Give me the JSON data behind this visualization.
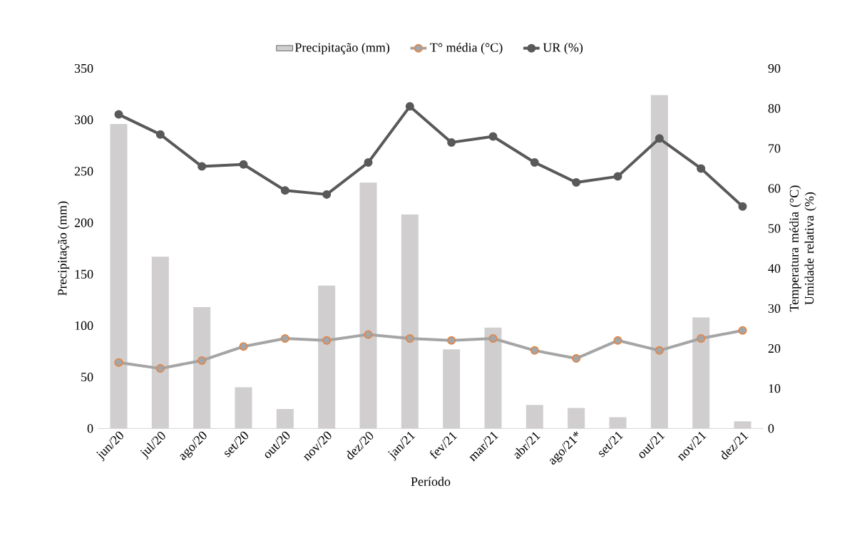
{
  "chart_data": {
    "type": "bar",
    "xlabel": "Período",
    "ylabel": "Precipitação (mm)",
    "y2label": "Temperatura média (°C) Umidade relativa (%)",
    "categories": [
      "jun/20",
      "jul/20",
      "ago/20",
      "set/20",
      "out/20",
      "nov/20",
      "dez/20",
      "jan/21",
      "fev/21",
      "mar/21",
      "abr/21",
      "ago/21*",
      "set/21",
      "out/21",
      "nov/21",
      "dez/21"
    ],
    "series": [
      {
        "name": "Precipitação (mm)",
        "color": "#d0cece",
        "values": [
          296,
          167,
          118,
          40,
          19,
          139,
          239,
          208,
          77,
          98,
          23,
          20,
          11,
          324,
          108,
          7
        ]
      },
      {
        "name": "T° média (°C)",
        "type": "line",
        "axis": "y2",
        "color": "#a5a5a5",
        "values": [
          16.5,
          15,
          17,
          20.5,
          22.5,
          22,
          23.5,
          22.5,
          22,
          22.5,
          19.5,
          17.5,
          22,
          19.5,
          22.5,
          24.5
        ]
      },
      {
        "name": "UR (%)",
        "type": "line",
        "axis": "y2",
        "color": "#595959",
        "values": [
          78.5,
          73.5,
          65.5,
          66,
          59.5,
          58.5,
          66.5,
          80.5,
          71.5,
          73,
          66.5,
          61.5,
          63,
          72.5,
          65,
          55.5
        ]
      }
    ],
    "ylim": [
      0,
      350
    ],
    "yticks": [
      0,
      50,
      100,
      150,
      200,
      250,
      300,
      350
    ],
    "y2lim": [
      0,
      90
    ],
    "y2ticks": [
      0,
      10,
      20,
      30,
      40,
      50,
      60,
      70,
      80,
      90
    ],
    "legend": "top",
    "marker": "circle"
  }
}
